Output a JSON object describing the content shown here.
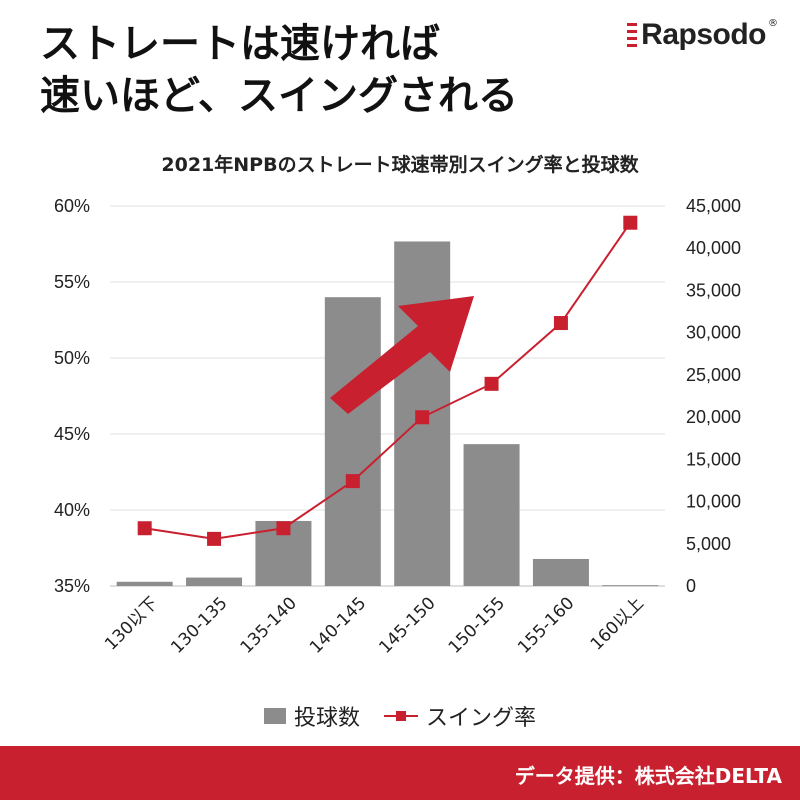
{
  "headline": {
    "line1": "ストレートは速ければ",
    "line2": "速いほど、スイングされる"
  },
  "logo": {
    "text": "Rapsodo",
    "reg": "®"
  },
  "footer": {
    "credit": "データ提供：株式会社DELTA"
  },
  "colors": {
    "bar": "#8c8c8c",
    "line": "#c8202f",
    "footer": "#c8202f",
    "arrow": "#c8202f"
  },
  "chart_data": {
    "type": "bar+line",
    "title": "2021年NPBのストレート球速帯別スイング率と投球数",
    "categories": [
      "130以下",
      "130-135",
      "135-140",
      "140-145",
      "145-150",
      "150-155",
      "155-160",
      "160以上"
    ],
    "series": [
      {
        "name": "投球数",
        "type": "bar",
        "axis": "right",
        "values": [
          500,
          1000,
          7700,
          34200,
          40800,
          16800,
          3200,
          100
        ]
      },
      {
        "name": "スイング率",
        "type": "line",
        "axis": "left",
        "values": [
          38.8,
          38.1,
          38.8,
          41.9,
          46.1,
          48.3,
          52.3,
          58.9
        ]
      }
    ],
    "left_axis": {
      "ylim": [
        35,
        60
      ],
      "ticks": [
        "35%",
        "40%",
        "45%",
        "50%",
        "55%",
        "60%"
      ]
    },
    "right_axis": {
      "ylim": [
        0,
        45000
      ],
      "ticks": [
        "0",
        "5,000",
        "10,000",
        "15,000",
        "20,000",
        "25,000",
        "30,000",
        "35,000",
        "40,000",
        "45,000"
      ]
    },
    "grid": true,
    "legend": "bottom",
    "annotation": "upward red arrow"
  }
}
